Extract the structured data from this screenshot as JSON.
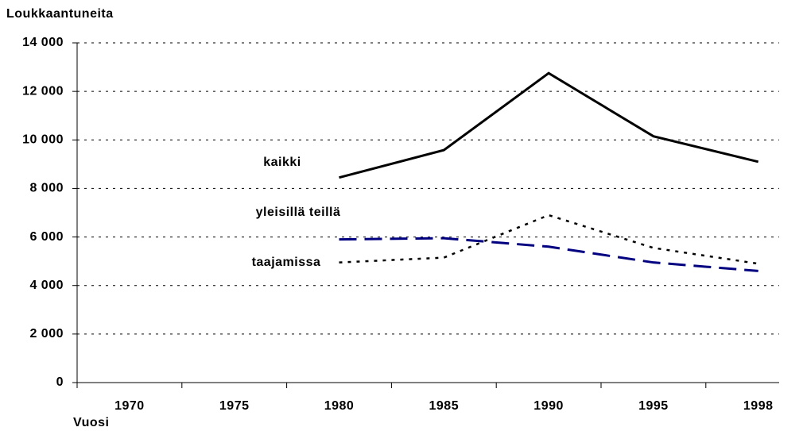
{
  "chart_data": {
    "type": "line",
    "title": "Loukkaantuneita",
    "x_label": "Vuosi",
    "categories": [
      "1970",
      "1975",
      "1980",
      "1985",
      "1990",
      "1995",
      "1998"
    ],
    "series": [
      {
        "name": "kaikki",
        "color": "#000000",
        "style": "solid",
        "values": [
          null,
          null,
          8450,
          9580,
          12750,
          10150,
          9100
        ]
      },
      {
        "name": "yleisillä teillä",
        "color": "#000080",
        "style": "dashed",
        "values": [
          null,
          null,
          5900,
          5950,
          5600,
          4950,
          4600
        ]
      },
      {
        "name": "taajamissa",
        "color": "#000000",
        "style": "dotted",
        "values": [
          null,
          null,
          4950,
          5150,
          6900,
          5550,
          4900
        ]
      }
    ],
    "ylim": [
      0,
      14000
    ],
    "yticks": [
      0,
      {
        "value": 2000,
        "label": "2 000"
      },
      {
        "value": 4000,
        "label": "4 000"
      },
      {
        "value": 6000,
        "label": "6 000"
      },
      {
        "value": 8000,
        "label": "8 000"
      },
      {
        "value": 10000,
        "label": "10 000"
      },
      {
        "value": 12000,
        "label": "12 000"
      },
      {
        "value": 14000,
        "label": "14 000"
      }
    ],
    "grid": true
  }
}
